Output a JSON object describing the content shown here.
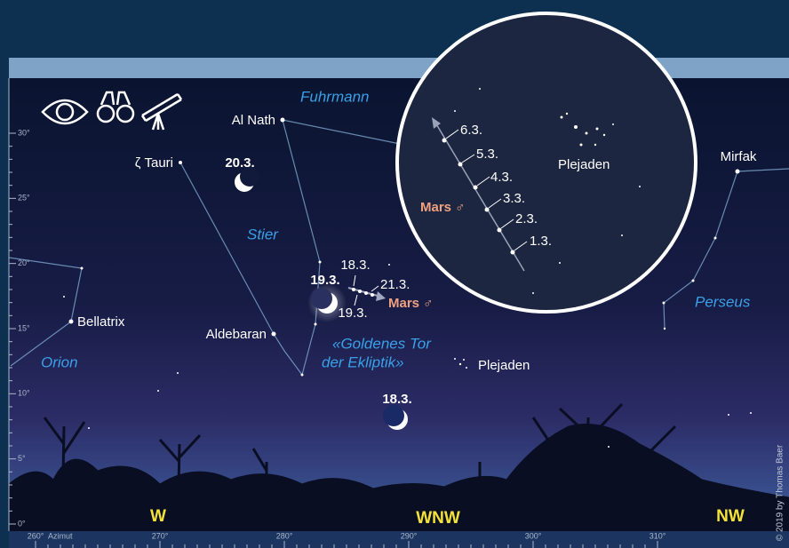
{
  "altitude_scale": {
    "ticks": [
      {
        "value": 0,
        "label": "0°"
      },
      {
        "value": 5,
        "label": "5°"
      },
      {
        "value": 10,
        "label": "10°"
      },
      {
        "value": 15,
        "label": "15°"
      },
      {
        "value": 20,
        "label": "20°"
      },
      {
        "value": 25,
        "label": "25°"
      },
      {
        "value": 30,
        "label": "30°"
      }
    ]
  },
  "azimuth_scale": {
    "unit_label": "Azimut",
    "ticks": [
      {
        "value": 260,
        "label": "260°"
      },
      {
        "value": 270,
        "label": "270°"
      },
      {
        "value": 280,
        "label": "280°"
      },
      {
        "value": 290,
        "label": "290°"
      },
      {
        "value": 300,
        "label": "300°"
      },
      {
        "value": 310,
        "label": "310°"
      }
    ]
  },
  "compass": [
    "W",
    "WNW",
    "NW"
  ],
  "stars": [
    "Al Nath",
    "ζ Tauri",
    "Mirfak",
    "Bellatrix",
    "Aldebaran",
    "Plejaden"
  ],
  "constellations": [
    "Fuhrmann",
    "Stier",
    "Perseus",
    "Orion"
  ],
  "ecliptic_label": [
    "«Goldenes Tor",
    "der Ekliptik»"
  ],
  "moon_dates": [
    "20.3.",
    "19.3.",
    "18.3."
  ],
  "mars_dates": [
    "18.3.",
    "21.3.",
    "19.3."
  ],
  "mars_label": "Mars ♂",
  "inset": {
    "dates": [
      "6.3.",
      "5.3.",
      "4.3.",
      "3.3.",
      "2.3.",
      "1.3."
    ],
    "mars_label": "Mars ♂",
    "cluster_label": "Plejaden"
  },
  "copyright": "© 2019 by Thomas Baer"
}
